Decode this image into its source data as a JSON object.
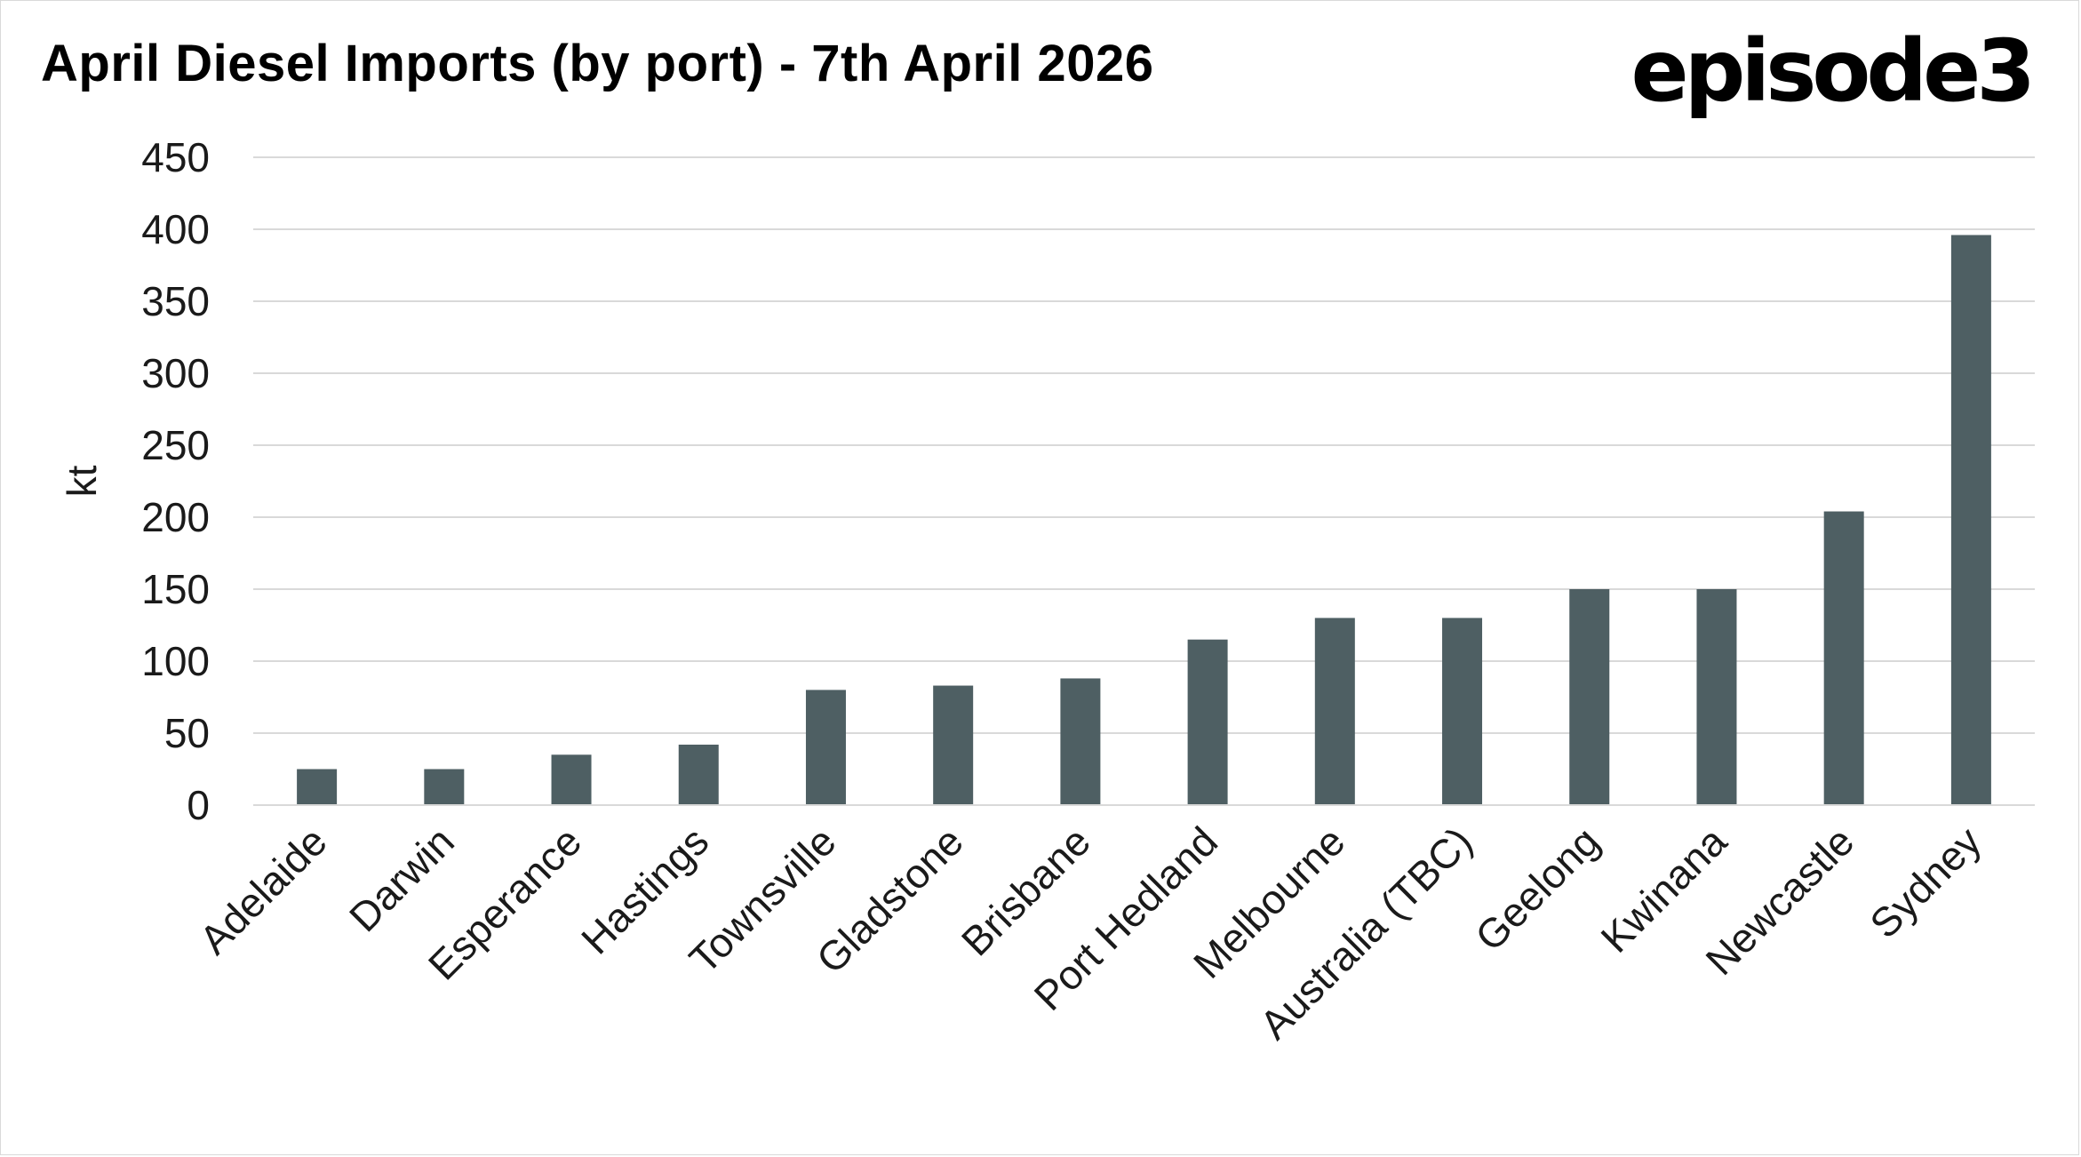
{
  "title": "April Diesel Imports (by port) - 7th April 2026",
  "brand": "episode3",
  "chart_data": {
    "type": "bar",
    "title": "April Diesel Imports (by port) - 7th April 2026",
    "xlabel": "",
    "ylabel": "kt",
    "ylim": [
      0,
      450
    ],
    "yticks": [
      0,
      50,
      100,
      150,
      200,
      250,
      300,
      350,
      400,
      450
    ],
    "grid": true,
    "legend": "none",
    "bar_color": "#4e5f63",
    "grid_color": "#d9d9d9",
    "categories": [
      "Adelaide",
      "Darwin",
      "Esperance",
      "Hastings",
      "Townsville",
      "Gladstone",
      "Brisbane",
      "Port Hedland",
      "Melbourne",
      "Australia (TBC)",
      "Geelong",
      "Kwinana",
      "Newcastle",
      "Sydney"
    ],
    "values": [
      25,
      25,
      35,
      42,
      80,
      83,
      88,
      115,
      130,
      130,
      150,
      150,
      204,
      396
    ]
  }
}
